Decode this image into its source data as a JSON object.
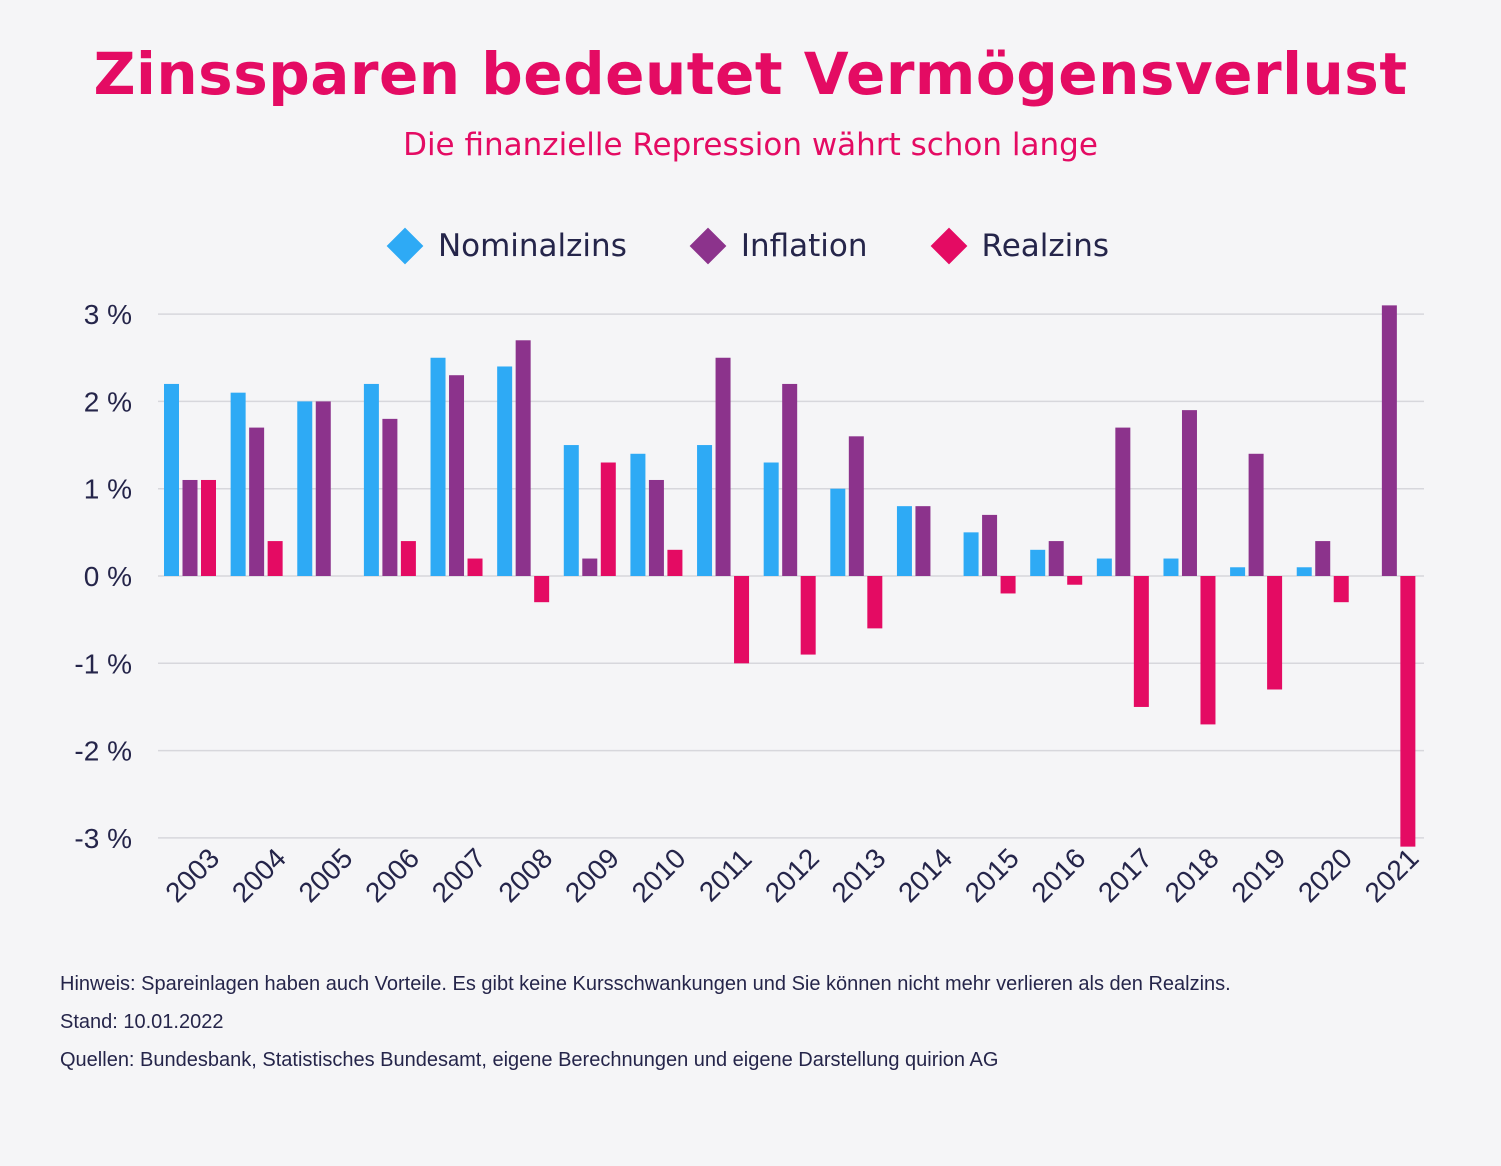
{
  "header": {
    "title": "Zinssparen bedeutet Vermögensverlust",
    "subtitle": "Die finanzielle Repression währt schon lange"
  },
  "colors": {
    "nominal": "#2eaaf5",
    "inflation": "#8c338c",
    "real": "#e40b63",
    "grid": "#d7d7dc",
    "text": "#25254a"
  },
  "chart_data": {
    "type": "bar",
    "categories": [
      "2003",
      "2004",
      "2005",
      "2006",
      "2007",
      "2008",
      "2009",
      "2010",
      "2011",
      "2012",
      "2013",
      "2014",
      "2015",
      "2016",
      "2017",
      "2018",
      "2019",
      "2020",
      "2021"
    ],
    "series": [
      {
        "name": "Nominalzins",
        "values": [
          2.2,
          2.1,
          2.0,
          2.2,
          2.5,
          2.4,
          1.5,
          1.4,
          1.5,
          1.3,
          1.0,
          0.8,
          0.5,
          0.3,
          0.2,
          0.2,
          0.1,
          0.1,
          0.0
        ]
      },
      {
        "name": "Inflation",
        "values": [
          1.1,
          1.7,
          2.0,
          1.8,
          2.3,
          2.7,
          0.2,
          1.1,
          2.5,
          2.2,
          1.6,
          0.8,
          0.7,
          0.4,
          1.7,
          1.9,
          1.4,
          0.4,
          3.1
        ]
      },
      {
        "name": "Realzins",
        "values": [
          1.1,
          0.4,
          0.0,
          0.4,
          0.2,
          -0.3,
          1.3,
          0.3,
          -1.0,
          -0.9,
          -0.6,
          0.0,
          -0.2,
          -0.1,
          -1.5,
          -1.7,
          -1.3,
          -0.3,
          -3.1
        ]
      }
    ],
    "yticks": [
      "3 %",
      "2 %",
      "1 %",
      "0 %",
      "-1 %",
      "-2 %",
      "-3 %"
    ],
    "ylim": [
      -3,
      3
    ],
    "legend_position": "top-center",
    "grid": true
  },
  "notes": {
    "hinweis": "Hinweis: Spareinlagen haben auch Vorteile. Es gibt keine Kursschwankungen und Sie können nicht mehr verlieren als den Realzins.",
    "stand": "Stand: 10.01.2022",
    "quellen": "Quellen: Bundesbank, Statistisches Bundesamt, eigene Berechnungen und eigene Darstellung quirion AG"
  }
}
